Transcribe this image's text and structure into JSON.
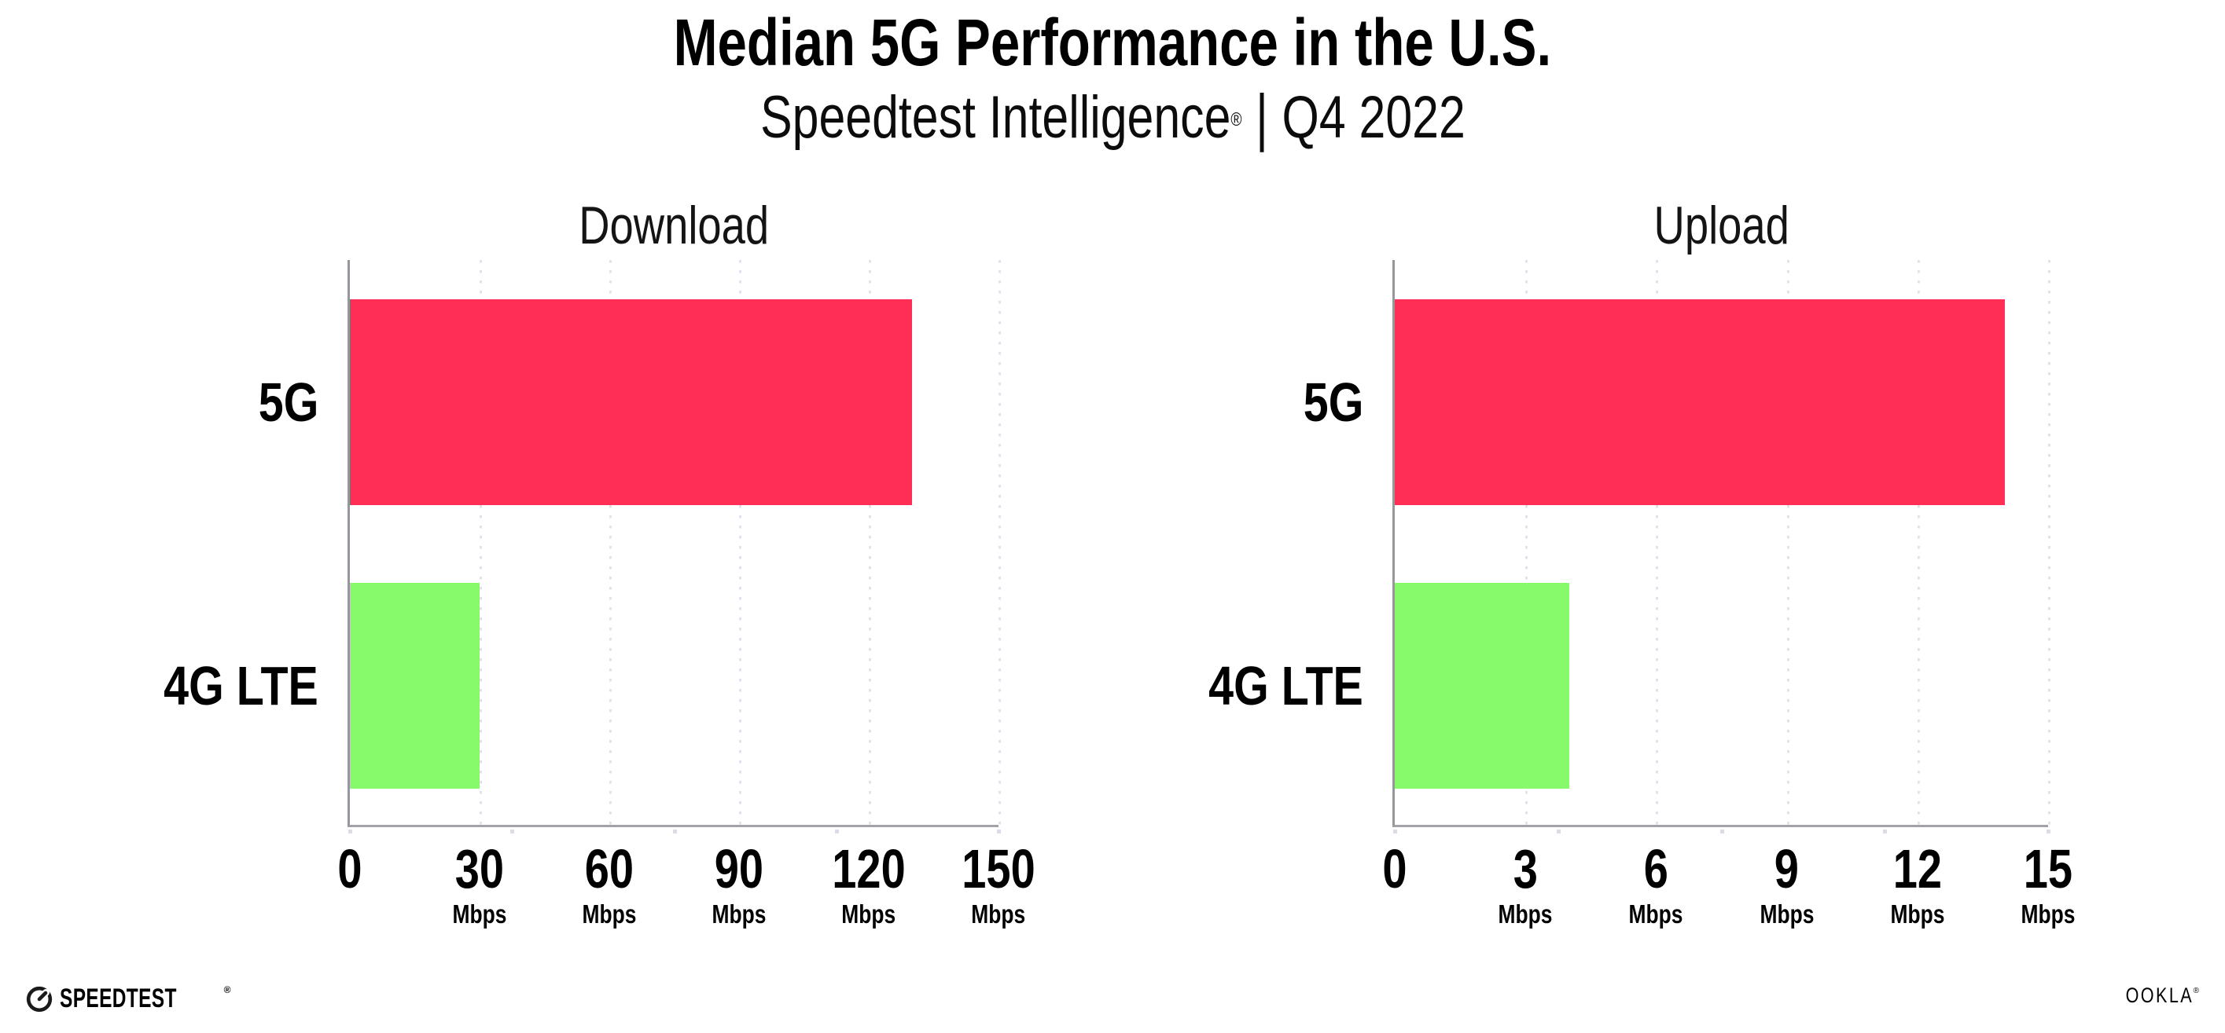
{
  "page": {
    "background": "#FFFFFF"
  },
  "header": {
    "title": "Median 5G Performance in the U.S.",
    "subtitle_brand": "Speedtest Intelligence",
    "subtitle_registered": "®",
    "subtitle_separator": "|",
    "subtitle_period": "Q4 2022"
  },
  "colors": {
    "bar_5g": "#FF2E56",
    "bar_4g_lte": "#86FA6B",
    "axis": "#9B9BA1",
    "gridline": "#E2E2EC",
    "text": "#000000",
    "background": "#FFFFFF"
  },
  "chart_data": [
    {
      "type": "bar",
      "orientation": "horizontal",
      "title": "Download",
      "categories": [
        "5G",
        "4G LTE"
      ],
      "values": [
        130,
        30
      ],
      "value_unit": "Mbps",
      "xlim": [
        0,
        150
      ],
      "xticks": [
        {
          "label": "0",
          "unit": ""
        },
        {
          "label": "30",
          "unit": "Mbps"
        },
        {
          "label": "60",
          "unit": "Mbps"
        },
        {
          "label": "90",
          "unit": "Mbps"
        },
        {
          "label": "120",
          "unit": "Mbps"
        },
        {
          "label": "150",
          "unit": "Mbps"
        }
      ],
      "bar_colors": [
        "#FF2E56",
        "#86FA6B"
      ],
      "grid": "dotted vertical gridlines at labeled ticks",
      "legend": "none"
    },
    {
      "type": "bar",
      "orientation": "horizontal",
      "title": "Upload",
      "categories": [
        "5G",
        "4G LTE"
      ],
      "values": [
        14,
        4
      ],
      "value_unit": "Mbps",
      "xlim": [
        0,
        15
      ],
      "xticks": [
        {
          "label": "0",
          "unit": ""
        },
        {
          "label": "3",
          "unit": "Mbps"
        },
        {
          "label": "6",
          "unit": "Mbps"
        },
        {
          "label": "9",
          "unit": "Mbps"
        },
        {
          "label": "12",
          "unit": "Mbps"
        },
        {
          "label": "15",
          "unit": "Mbps"
        }
      ],
      "bar_colors": [
        "#FF2E56",
        "#86FA6B"
      ],
      "grid": "dotted vertical gridlines at labeled ticks",
      "legend": "none"
    }
  ],
  "footer": {
    "speedtest_text": "SPEEDTEST",
    "speedtest_mark": "®",
    "ookla_text": "OOKLA",
    "ookla_mark": "®"
  }
}
